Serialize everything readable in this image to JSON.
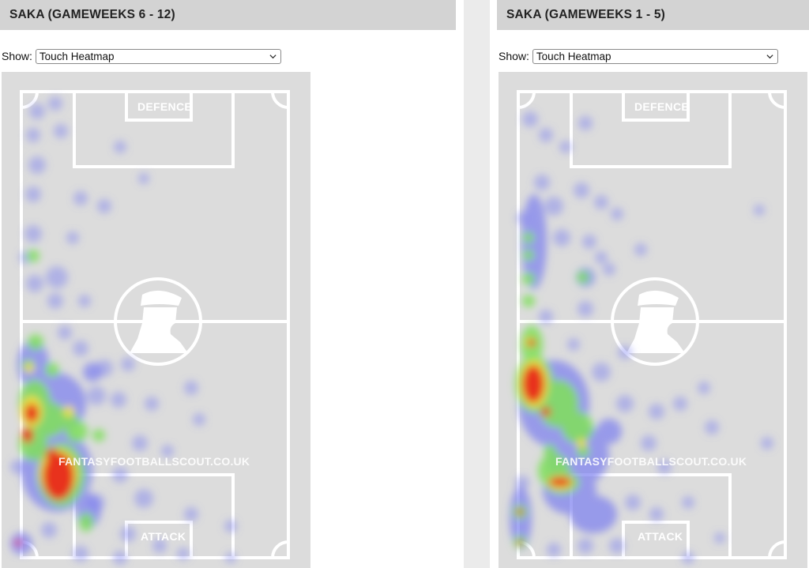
{
  "panels": [
    {
      "title": "SAKA (GAMEWEEKS 6 - 12)",
      "show_label": "Show:",
      "select_value": "Touch Heatmap",
      "top_label": "DEFENCE",
      "bottom_label": "ATTACK",
      "watermark": "FANTASYFOOTBALLSCOUT.CO.UK"
    },
    {
      "title": "SAKA (GAMEWEEKS 1 - 5)",
      "show_label": "Show:",
      "select_value": "Touch Heatmap",
      "top_label": "DEFENCE",
      "bottom_label": "ATTACK",
      "watermark": "FANTASYFOOTBALLSCOUT.CO.UK"
    }
  ],
  "colors": {
    "header_bg": "#d3d3d3",
    "pitch_bg": "#dcdcdc",
    "pitch_lines": "#ffffff",
    "heat_low": "#7b7ef0",
    "heat_mid": "#7ee05a",
    "heat_high": "#e8281c"
  },
  "icons": {
    "select_chevron": "chevron-down-icon",
    "centre_logo": "scout-logo-icon"
  }
}
